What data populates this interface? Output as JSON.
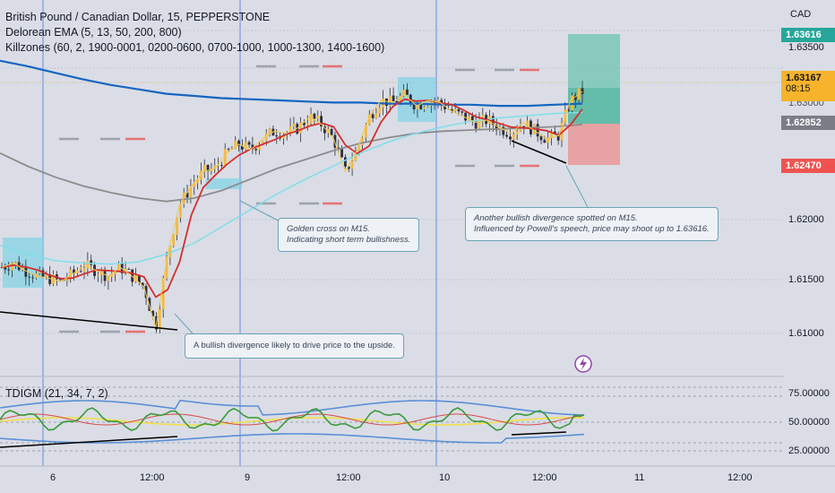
{
  "header": {
    "line1": "British Pound / Canadian Dollar, 15, PEPPERSTONE",
    "line2": "Delorean EMA (5, 13, 50, 200, 800)",
    "line3": "Killzones (60, 2, 1900-0001, 0200-0600, 0700-1000, 1000-1300, 1400-1600)"
  },
  "currency": "CAD",
  "oscillator_label": "TDIGM (21, 34, 7, 2)",
  "price_badges": {
    "target": "1.63616",
    "current": "1.63167",
    "countdown": "08:15",
    "grey": "1.62852",
    "stop": "1.62470"
  },
  "colors": {
    "target": "#26a69a",
    "current": "#f7b32b",
    "grey": "#7a7d86",
    "stop": "#ef5350",
    "ema200": "#1565c0",
    "ema50": "#80deea",
    "ema13": "#d32f2f",
    "ema800": "#8c8c8c"
  },
  "annotations": {
    "golden_cross": [
      "Golden cross on M15.",
      "Indicating short term bullishness."
    ],
    "divergence2": [
      "Another bullish divergence spotted on M15.",
      "Influenced by Powell's speech, price may shoot up to 1.63616."
    ],
    "divergence1": "A bullish divergence likely to drive price to the upside."
  },
  "chart_data": {
    "type": "line",
    "title": "British Pound / Canadian Dollar, 15, PEPPERSTONE",
    "x_ticks": [
      "6",
      "12:00",
      "9",
      "12:00",
      "10",
      "12:00",
      "11",
      "12:00"
    ],
    "y_ticks": [
      "1.63500",
      "1.62000",
      "1.61500",
      "1.61000"
    ],
    "y_ticks_near_price": [
      "1.63000"
    ],
    "osc_ticks": [
      "75.00000",
      "50.00000",
      "25.00000"
    ],
    "ylim": [
      1.6075,
      1.6385
    ],
    "series": [
      {
        "values": [
          1.6158,
          1.6162,
          1.6155,
          1.615,
          1.6148,
          1.6145,
          1.6152,
          1.616,
          1.6155,
          1.615,
          1.6158,
          1.615,
          1.614,
          1.6103,
          1.617,
          1.6215,
          1.6232,
          1.6245,
          1.6248,
          1.6262,
          1.627,
          1.6265,
          1.6275,
          1.6282,
          1.628,
          1.6285,
          1.6295,
          1.6288,
          1.6275,
          1.6245,
          1.6265,
          1.6295,
          1.631,
          1.6308,
          1.6315,
          1.6305,
          1.631,
          1.6308,
          1.63,
          1.6295,
          1.629,
          1.6292,
          1.6285,
          1.628,
          1.629,
          1.6282,
          1.6275,
          1.6278,
          1.631,
          1.6318
        ]
      },
      {
        "name": "",
        "values": [
          1.6178,
          1.617,
          1.6164,
          1.6162,
          1.6161,
          1.6163,
          1.617,
          1.618,
          1.6195,
          1.621,
          1.6225,
          1.6238,
          1.625,
          1.6262,
          1.6272,
          1.628,
          1.6286,
          1.6291,
          1.6294,
          1.6296,
          1.6298,
          1.6299
        ]
      },
      {
        "name": "",
        "values": [
          1.6346,
          1.6341,
          1.6335,
          1.6329,
          1.6324,
          1.632,
          1.6316,
          1.6314,
          1.6312,
          1.6311,
          1.631,
          1.6309,
          1.6308,
          1.6308,
          1.6307,
          1.6307,
          1.6306,
          1.6306,
          1.6305,
          1.6305,
          1.6306,
          1.6307
        ]
      },
      {
        "name": "",
        "values": [
          1.6262,
          1.625,
          1.624,
          1.6232,
          1.6226,
          1.6221,
          1.6218,
          1.6221,
          1.6228,
          1.6238,
          1.6248,
          1.6256,
          1.6264,
          1.6271,
          1.6276,
          1.628,
          1.6282,
          1.6283,
          1.6284,
          1.6285,
          1.6286,
          1.6288
        ]
      }
    ],
    "position": {
      "entry": 1.63,
      "target": 1.63616,
      "stop": 1.6247
    }
  }
}
